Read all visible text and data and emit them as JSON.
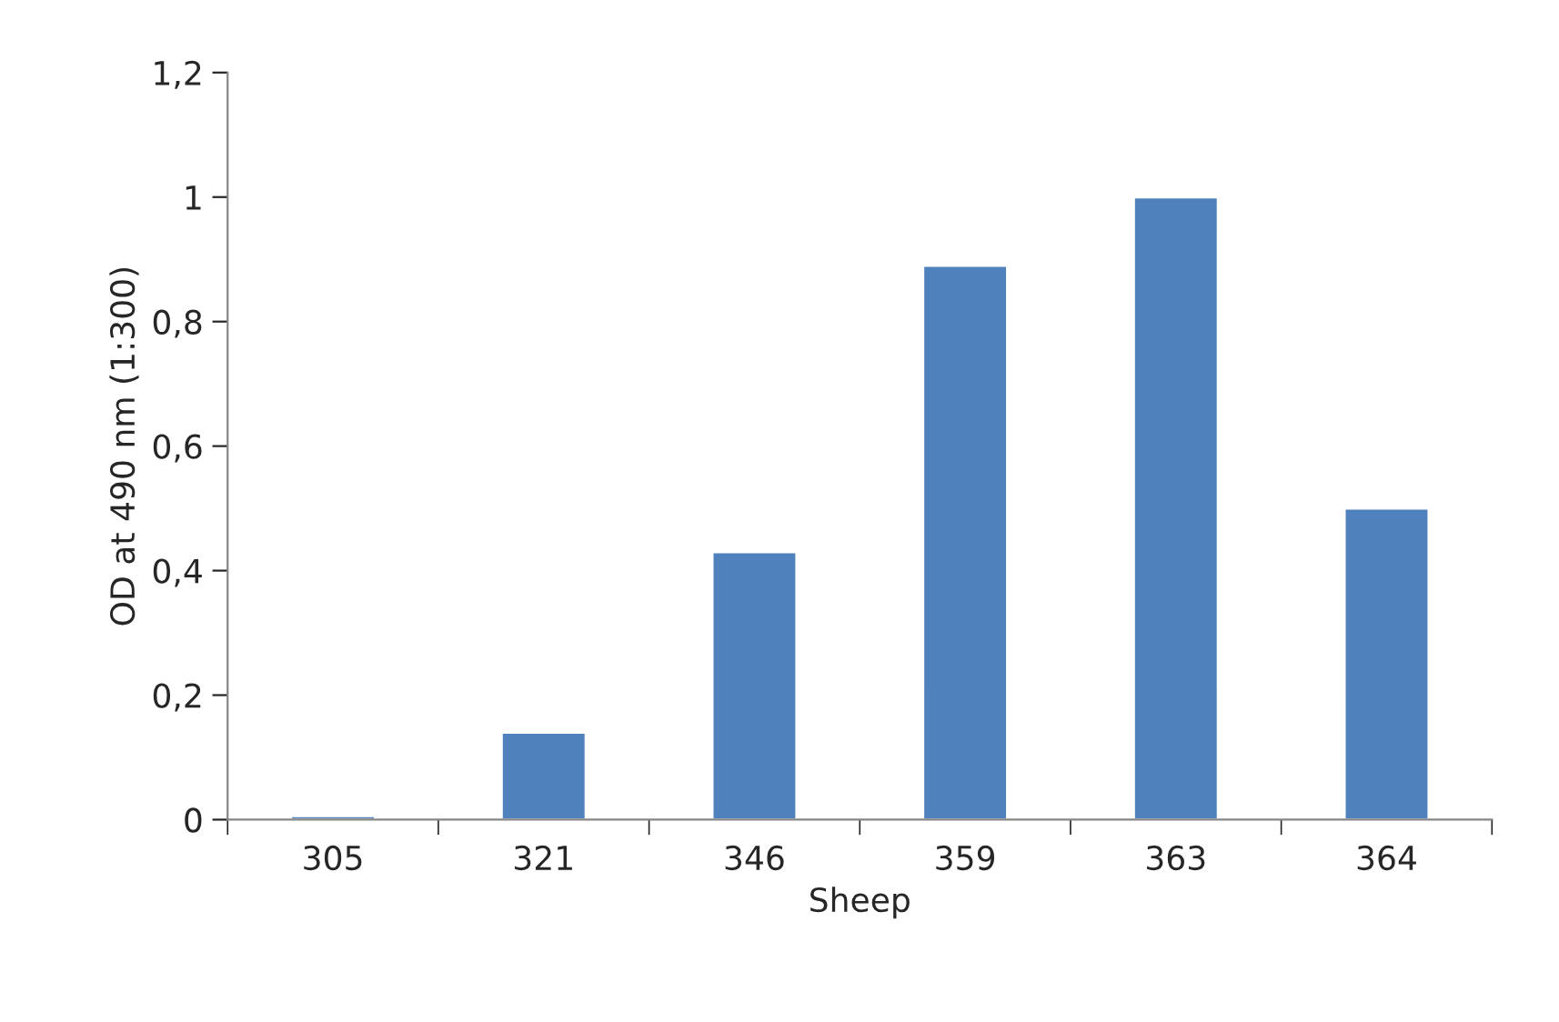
{
  "chart_data": {
    "type": "bar",
    "xlabel": "Sheep",
    "ylabel": "OD at 490 nm (1:300)",
    "categories": [
      "305",
      "321",
      "346",
      "359",
      "363",
      "364"
    ],
    "values": [
      0.006,
      0.14,
      0.43,
      0.89,
      1.0,
      0.5
    ],
    "color": "#4f81bd",
    "ylim": [
      0,
      1.2
    ],
    "yticks": [
      0,
      {
        "value": 0.2,
        "label": "0,2"
      },
      {
        "value": 0.4,
        "label": "0,4"
      },
      {
        "value": 0.6,
        "label": "0,6"
      },
      {
        "value": 0.8,
        "label": "0,8"
      },
      1,
      {
        "value": 1.2,
        "label": "1,2"
      }
    ],
    "grid": false,
    "legend": false
  }
}
